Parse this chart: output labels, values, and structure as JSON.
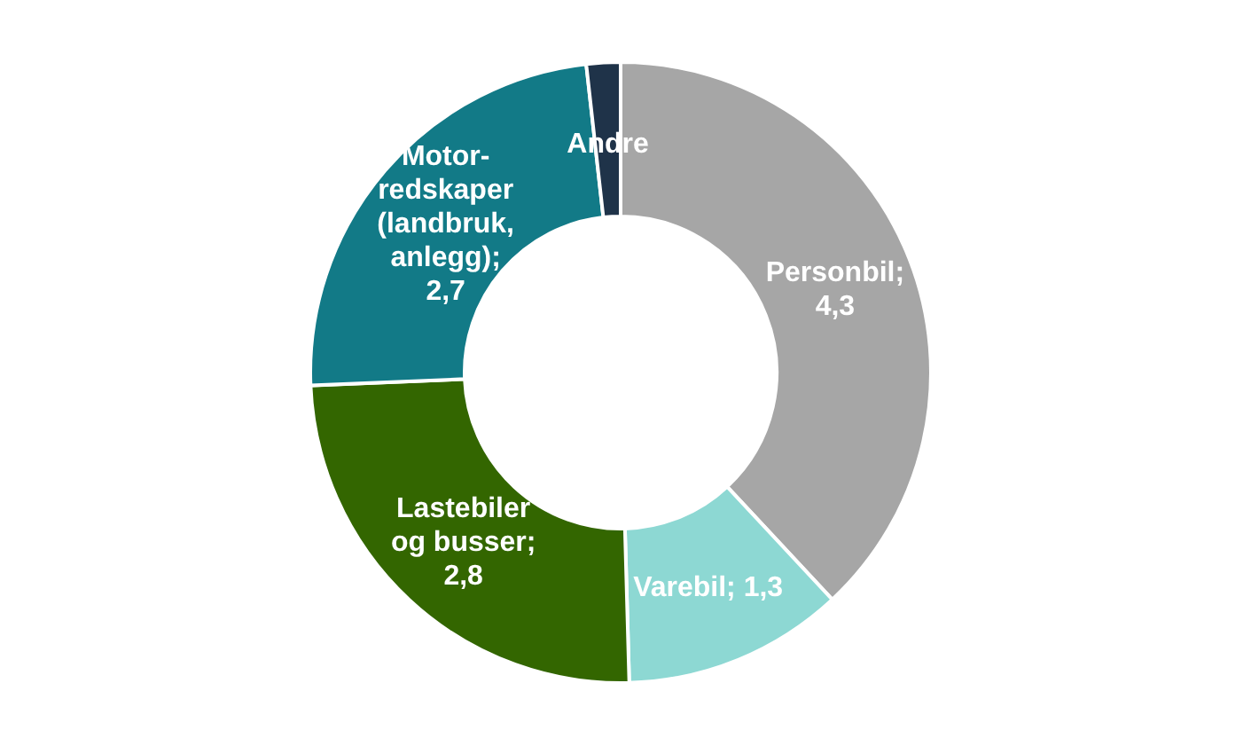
{
  "chart_data": {
    "type": "donut",
    "categories": [
      "Personbil",
      "Varebil",
      "Lastebiler og busser",
      "Motor-redskaper (landbruk, anlegg)",
      "Andre"
    ],
    "values": [
      4.3,
      1.3,
      2.8,
      2.7,
      0.2
    ],
    "value_labels": [
      "; 4,3",
      "; 1,3",
      "; 2,8",
      "; 2,7",
      null
    ],
    "colors": [
      "#a6a6a6",
      "#8dd8d3",
      "#336600",
      "#127a87",
      "#1f3349"
    ]
  }
}
